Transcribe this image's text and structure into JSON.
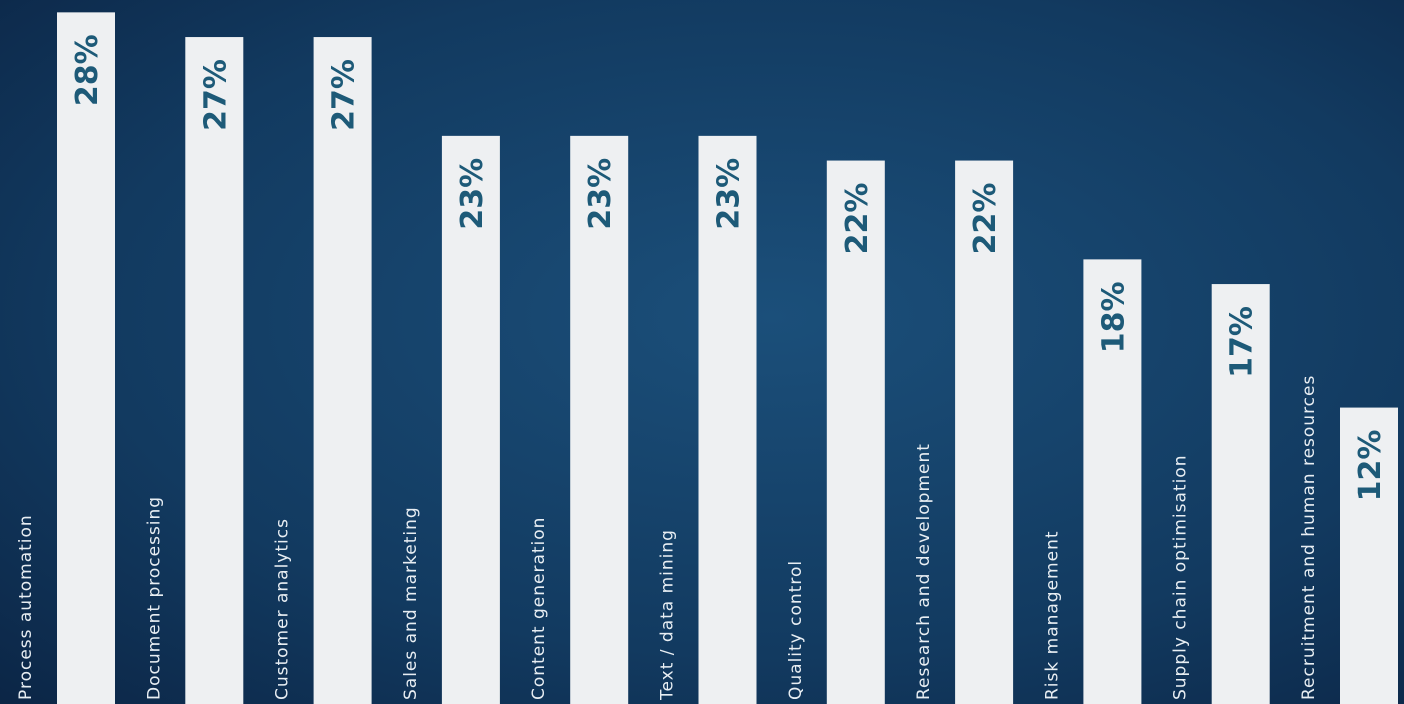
{
  "chart_data": {
    "type": "bar",
    "categories": [
      "Process automation",
      "Document processing",
      "Customer analytics",
      "Sales and marketing",
      "Content generation",
      "Text / data mining",
      "Quality control",
      "Research and development",
      "Risk management",
      "Supply chain optimisation",
      "Recruitment and human resources"
    ],
    "values": [
      28,
      27,
      27,
      23,
      23,
      23,
      22,
      22,
      18,
      17,
      12
    ],
    "value_labels": [
      "28%",
      "27%",
      "27%",
      "23%",
      "23%",
      "23%",
      "22%",
      "22%",
      "18%",
      "17%",
      "12%"
    ],
    "color": "#eef0f2",
    "ylim": [
      0,
      28.5
    ]
  }
}
